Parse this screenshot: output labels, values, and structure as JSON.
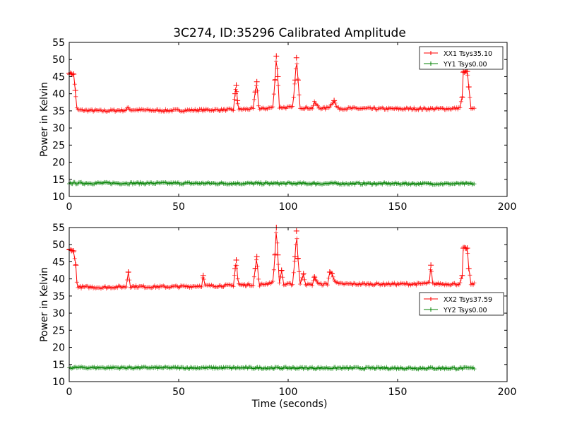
{
  "figure": {
    "title": "3C274, ID:35296 Calibrated Amplitude"
  },
  "chart_data": [
    {
      "type": "line",
      "ylabel": "Power in Kelvin",
      "xlabel": "",
      "xlim": [
        0,
        200
      ],
      "ylim": [
        10,
        55
      ],
      "xticks": [
        0,
        50,
        100,
        150,
        200
      ],
      "yticks": [
        10,
        15,
        20,
        25,
        30,
        35,
        40,
        45,
        50,
        55
      ],
      "grid": false,
      "legend_position": "top-right",
      "series": [
        {
          "name": "XX1 Tsys35.10",
          "color": "#ff0000",
          "baseline": 35.1,
          "x": [
            0,
            1,
            2,
            2.8,
            3.4,
            4,
            5,
            10,
            15,
            20,
            26,
            27,
            28,
            35,
            45,
            55,
            65,
            75,
            75.8,
            76.3,
            76.8,
            77.5,
            84,
            85,
            85.7,
            86.4,
            87,
            93,
            94,
            94.6,
            95.3,
            96,
            102,
            103.2,
            103.8,
            104.5,
            105.5,
            108,
            111,
            112,
            113,
            114,
            117,
            119,
            120,
            121,
            122,
            123,
            130,
            140,
            150,
            160,
            170,
            177,
            178.5,
            179.5,
            180,
            181,
            181.8,
            182.5,
            183.5,
            185
          ],
          "y": [
            46,
            45.8,
            45.7,
            41,
            35.8,
            35.2,
            35.2,
            35.1,
            35.0,
            35.1,
            35.2,
            36,
            35.3,
            35.2,
            35.1,
            35.2,
            35.3,
            35.3,
            40,
            42.5,
            38,
            35.4,
            35.6,
            40.5,
            43.5,
            37,
            35.5,
            36,
            44,
            51,
            45,
            36,
            36,
            44,
            50.5,
            44,
            36,
            35.9,
            35.8,
            37.4,
            36.8,
            35.9,
            35.7,
            36.3,
            37.2,
            38,
            36.3,
            35.7,
            35.7,
            35.6,
            35.6,
            35.6,
            35.6,
            35.7,
            36,
            39,
            46.3,
            46.5,
            46.5,
            42,
            35.5,
            35.5
          ]
        },
        {
          "name": "YY1 Tsys0.00",
          "color": "#008000",
          "baseline": 13.7,
          "x": [
            0,
            185
          ],
          "y": [
            13.9,
            13.7
          ]
        }
      ]
    },
    {
      "type": "line",
      "ylabel": "Power in Kelvin",
      "xlabel": "Time (seconds)",
      "xlim": [
        0,
        200
      ],
      "ylim": [
        10,
        55
      ],
      "xticks": [
        0,
        50,
        100,
        150,
        200
      ],
      "yticks": [
        10,
        15,
        20,
        25,
        30,
        35,
        40,
        45,
        50,
        55
      ],
      "grid": false,
      "legend_position": "center-right",
      "series": [
        {
          "name": "XX2 Tsys37.59",
          "color": "#ff0000",
          "baseline": 37.59,
          "x": [
            0,
            1,
            2,
            3,
            3.6,
            4.2,
            5,
            10,
            15,
            20,
            26,
            27,
            28,
            35,
            45,
            55,
            60.5,
            61.2,
            62,
            70,
            75,
            75.8,
            76.3,
            77,
            77.6,
            84,
            85,
            85.7,
            86.4,
            87,
            93,
            94,
            94.6,
            95.3,
            96,
            97,
            98,
            102,
            103.2,
            103.8,
            104.5,
            105.5,
            107,
            108,
            109,
            111,
            112,
            113,
            114,
            118,
            119,
            120,
            121,
            122,
            123,
            130,
            140,
            150,
            160,
            164.5,
            165.2,
            166,
            170,
            177,
            178.5,
            179.5,
            180,
            181,
            181.8,
            182.5,
            183.5,
            185
          ],
          "y": [
            48.5,
            48.3,
            48.2,
            44,
            38,
            37.7,
            37.6,
            37.6,
            37.5,
            37.6,
            37.7,
            42,
            37.8,
            37.7,
            37.7,
            37.8,
            38,
            41,
            38,
            38,
            38.1,
            43,
            45.5,
            40,
            38.2,
            38.3,
            43,
            46.5,
            40,
            38.2,
            39,
            47,
            55,
            47,
            38.5,
            42.5,
            38.3,
            38.5,
            46.5,
            54,
            46,
            38.4,
            41.5,
            38.5,
            38.3,
            38.3,
            40.5,
            39.5,
            38.4,
            38.5,
            42,
            41.5,
            40,
            39,
            38.5,
            38.5,
            38.5,
            38.5,
            38.5,
            38.8,
            44,
            38.6,
            38.5,
            38.5,
            38.6,
            41,
            49,
            49,
            49,
            43,
            38.5,
            38.5
          ]
        },
        {
          "name": "YY2 Tsys0.00",
          "color": "#008000",
          "baseline": 13.9,
          "x": [
            0,
            185
          ],
          "y": [
            14.1,
            13.9
          ]
        }
      ]
    }
  ]
}
